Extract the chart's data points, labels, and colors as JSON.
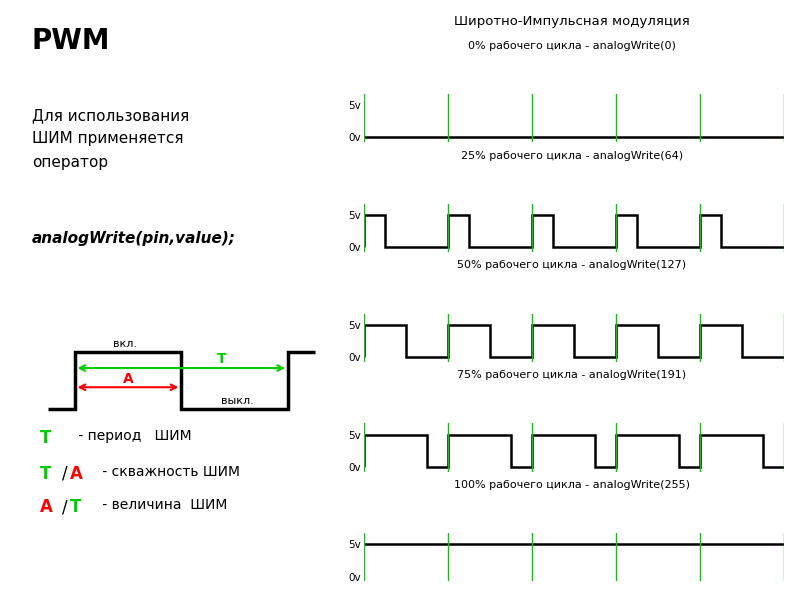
{
  "title": "PWM",
  "text_left1": "Для использования\nШИМ применяется\nоператор",
  "text_left2": "analogWrite(pin,value);",
  "bg_color": "#ffffff",
  "pwm_main_title": "Широтно-Импульсная модуляция",
  "waveforms": [
    {
      "label": "0% рабочего цикла - analogWrite(0)",
      "duty": 0.0
    },
    {
      "label": "25% рабочего цикла - analogWrite(64)",
      "duty": 0.25
    },
    {
      "label": "50% рабочего цикла - analogWrite(127)",
      "duty": 0.5
    },
    {
      "label": "75% рабочего цикла - analogWrite(191)",
      "duty": 0.75
    },
    {
      "label": "100% рабочего цикла - analogWrite(255)",
      "duty": 1.0
    }
  ],
  "signal_color": "#000000",
  "green_line_color": "#00cc00",
  "diagram_color": "#000000",
  "arrow_T_color": "#00cc00",
  "arrow_A_color": "#ff0000",
  "legend_T_color": "#00cc00",
  "legend_A_color": "#ff0000",
  "legend_text_color": "#000000",
  "n_periods": 5
}
